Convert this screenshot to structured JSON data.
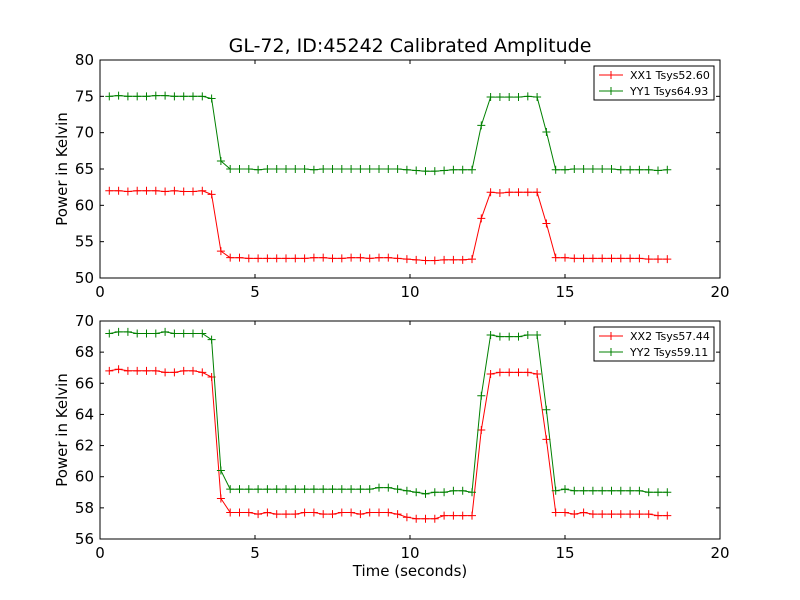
{
  "figure": {
    "title": "GL-72, ID:45242 Calibrated Amplitude"
  },
  "chart_data": [
    {
      "type": "line",
      "title": "GL-72, ID:45242 Calibrated Amplitude",
      "xlabel": "",
      "ylabel": "Power in Kelvin",
      "xlim": [
        0,
        20
      ],
      "ylim": [
        50,
        80
      ],
      "xticks": [
        0,
        5,
        10,
        15,
        20
      ],
      "yticks": [
        50,
        55,
        60,
        65,
        70,
        75,
        80
      ],
      "grid": false,
      "legend": "top-right",
      "x": [
        0.3,
        0.6,
        0.9,
        1.2,
        1.5,
        1.8,
        2.1,
        2.4,
        2.7,
        3.0,
        3.3,
        3.6,
        3.9,
        4.2,
        4.5,
        4.8,
        5.1,
        5.4,
        5.7,
        6.0,
        6.3,
        6.6,
        6.9,
        7.2,
        7.5,
        7.8,
        8.1,
        8.4,
        8.7,
        9.0,
        9.3,
        9.6,
        9.9,
        10.2,
        10.5,
        10.8,
        11.1,
        11.4,
        11.7,
        12.0,
        12.3,
        12.6,
        12.9,
        13.2,
        13.5,
        13.8,
        14.1,
        14.4,
        14.7,
        15.0,
        15.3,
        15.6,
        15.9,
        16.2,
        16.5,
        16.8,
        17.1,
        17.4,
        17.7,
        18.0,
        18.3
      ],
      "series": [
        {
          "name": "XX1 Tsys52.60",
          "color": "#ff0000",
          "values": [
            62.0,
            62.0,
            61.9,
            62.0,
            62.0,
            62.0,
            61.9,
            62.0,
            61.9,
            61.9,
            62.0,
            61.5,
            53.7,
            52.8,
            52.8,
            52.7,
            52.7,
            52.7,
            52.7,
            52.7,
            52.7,
            52.7,
            52.8,
            52.8,
            52.7,
            52.7,
            52.8,
            52.8,
            52.7,
            52.8,
            52.8,
            52.7,
            52.6,
            52.5,
            52.4,
            52.4,
            52.5,
            52.5,
            52.5,
            52.6,
            58.2,
            61.8,
            61.7,
            61.8,
            61.8,
            61.8,
            61.8,
            57.5,
            52.8,
            52.8,
            52.7,
            52.7,
            52.7,
            52.7,
            52.7,
            52.7,
            52.7,
            52.7,
            52.6,
            52.6,
            52.6
          ]
        },
        {
          "name": "YY1 Tsys64.93",
          "color": "#008000",
          "values": [
            75.0,
            75.1,
            75.0,
            75.0,
            75.0,
            75.1,
            75.1,
            75.0,
            75.0,
            75.0,
            75.0,
            74.7,
            66.1,
            65.0,
            65.0,
            65.0,
            64.9,
            65.0,
            65.0,
            65.0,
            65.0,
            65.0,
            64.9,
            65.0,
            65.0,
            65.0,
            65.0,
            65.0,
            65.0,
            65.0,
            65.0,
            65.0,
            64.9,
            64.8,
            64.7,
            64.7,
            64.8,
            64.9,
            64.9,
            64.9,
            71.0,
            74.9,
            74.9,
            74.9,
            74.9,
            75.0,
            74.9,
            70.1,
            64.9,
            64.9,
            65.0,
            65.0,
            65.0,
            65.0,
            65.0,
            64.9,
            64.9,
            64.9,
            64.9,
            64.8,
            64.9
          ]
        }
      ]
    },
    {
      "type": "line",
      "title": "",
      "xlabel": "Time (seconds)",
      "ylabel": "Power in Kelvin",
      "xlim": [
        0,
        20
      ],
      "ylim": [
        56,
        70
      ],
      "xticks": [
        0,
        5,
        10,
        15,
        20
      ],
      "yticks": [
        56,
        58,
        60,
        62,
        64,
        66,
        68,
        70
      ],
      "grid": false,
      "legend": "top-right",
      "x": [
        0.3,
        0.6,
        0.9,
        1.2,
        1.5,
        1.8,
        2.1,
        2.4,
        2.7,
        3.0,
        3.3,
        3.6,
        3.9,
        4.2,
        4.5,
        4.8,
        5.1,
        5.4,
        5.7,
        6.0,
        6.3,
        6.6,
        6.9,
        7.2,
        7.5,
        7.8,
        8.1,
        8.4,
        8.7,
        9.0,
        9.3,
        9.6,
        9.9,
        10.2,
        10.5,
        10.8,
        11.1,
        11.4,
        11.7,
        12.0,
        12.3,
        12.6,
        12.9,
        13.2,
        13.5,
        13.8,
        14.1,
        14.4,
        14.7,
        15.0,
        15.3,
        15.6,
        15.9,
        16.2,
        16.5,
        16.8,
        17.1,
        17.4,
        17.7,
        18.0,
        18.3
      ],
      "series": [
        {
          "name": "XX2 Tsys57.44",
          "color": "#ff0000",
          "values": [
            66.8,
            66.9,
            66.8,
            66.8,
            66.8,
            66.8,
            66.7,
            66.7,
            66.8,
            66.8,
            66.7,
            66.4,
            58.6,
            57.7,
            57.7,
            57.7,
            57.6,
            57.7,
            57.6,
            57.6,
            57.6,
            57.7,
            57.7,
            57.6,
            57.6,
            57.7,
            57.7,
            57.6,
            57.7,
            57.7,
            57.7,
            57.6,
            57.4,
            57.3,
            57.3,
            57.3,
            57.5,
            57.5,
            57.5,
            57.5,
            63.0,
            66.6,
            66.7,
            66.7,
            66.7,
            66.7,
            66.6,
            62.4,
            57.7,
            57.7,
            57.6,
            57.7,
            57.6,
            57.6,
            57.6,
            57.6,
            57.6,
            57.6,
            57.6,
            57.5,
            57.5
          ]
        },
        {
          "name": "YY2 Tsys59.11",
          "color": "#008000",
          "values": [
            69.2,
            69.3,
            69.3,
            69.2,
            69.2,
            69.2,
            69.3,
            69.2,
            69.2,
            69.2,
            69.2,
            68.8,
            60.4,
            59.2,
            59.2,
            59.2,
            59.2,
            59.2,
            59.2,
            59.2,
            59.2,
            59.2,
            59.2,
            59.2,
            59.2,
            59.2,
            59.2,
            59.2,
            59.2,
            59.3,
            59.3,
            59.2,
            59.1,
            59.0,
            58.9,
            59.0,
            59.0,
            59.1,
            59.1,
            59.0,
            65.2,
            69.1,
            69.0,
            69.0,
            69.0,
            69.1,
            69.1,
            64.3,
            59.1,
            59.2,
            59.1,
            59.1,
            59.1,
            59.1,
            59.1,
            59.1,
            59.1,
            59.1,
            59.0,
            59.0,
            59.0
          ]
        }
      ]
    }
  ]
}
